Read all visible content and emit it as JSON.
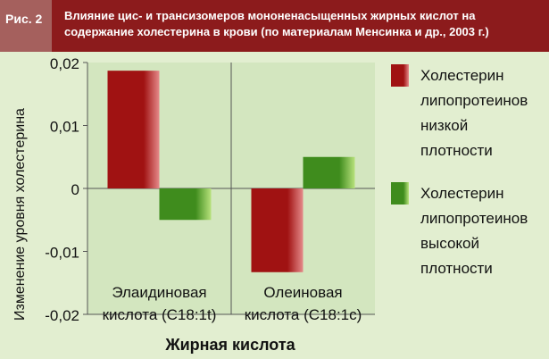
{
  "header": {
    "tag": "Рис. 2",
    "title": "Влияние цис- и трансизомеров мононенасыщенных жирных кислот на содержание холестерина в крови (по материалам Менсинка и др., 2003 г.)"
  },
  "chart_data": {
    "type": "bar",
    "xlabel": "Жирная кислота",
    "ylabel": "Изменение уровня холестерина",
    "ylim": [
      -0.02,
      0.02
    ],
    "yticks": [
      0.02,
      0.01,
      0,
      -0.01,
      -0.02
    ],
    "ytick_labels": [
      "0,02",
      "0,01",
      "0",
      "-0,01",
      "-0,02"
    ],
    "categories": [
      [
        "Элаидиновая",
        "кислота (C18:1t)"
      ],
      [
        "Олеиновая",
        "кислота (C18:1c)"
      ]
    ],
    "series": [
      {
        "name": [
          "Холестерин",
          "липопротеинов",
          "низкой",
          "плотности"
        ],
        "color": "#a01212",
        "values": [
          0.0187,
          -0.0133
        ]
      },
      {
        "name": [
          "Холестерин",
          "липопротеинов",
          "высокой",
          "плотности"
        ],
        "color": "#3f8c1d",
        "values": [
          -0.005,
          0.005
        ]
      }
    ],
    "legend_position": "right",
    "grid": false
  }
}
